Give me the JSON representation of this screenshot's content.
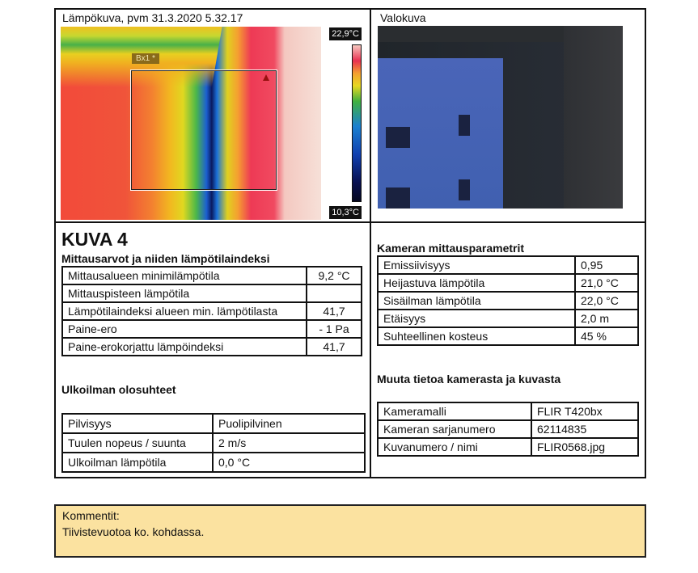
{
  "thermal": {
    "title": "Lämpökuva, pvm  31.3.2020 5.32.17",
    "max_temp": "22,9°C",
    "min_temp": "10,3°C",
    "box_label": "Bx1 *"
  },
  "photo": {
    "title": "Valokuva"
  },
  "kuva": "KUVA 4",
  "measurements": {
    "heading": "Mittausarvot ja niiden lämpötilaindeksi",
    "rows": [
      {
        "label": "Mittausalueen minimilämpötila",
        "value": "9,2 °C"
      },
      {
        "label": "Mittauspisteen lämpötila",
        "value": ""
      },
      {
        "label": "Lämpötilaindeksi alueen min. lämpötilasta",
        "value": "41,7"
      },
      {
        "label": "Paine-ero",
        "value": "- 1 Pa"
      },
      {
        "label": "Paine-erokorjattu lämpöindeksi",
        "value": "41,7"
      }
    ]
  },
  "outdoor": {
    "heading": "Ulkoilman olosuhteet",
    "rows": [
      {
        "label": "Pilvisyys",
        "value": "Puolipilvinen"
      },
      {
        "label": "Tuulen nopeus / suunta",
        "value": "2 m/s"
      },
      {
        "label": "Ulkoilman lämpötila",
        "value": "0,0 °C"
      }
    ]
  },
  "camera_params": {
    "heading": "Kameran mittausparametrit",
    "rows": [
      {
        "label": "Emissiivisyys",
        "value": "0,95"
      },
      {
        "label": "Heijastuva lämpötila",
        "value": "21,0 °C"
      },
      {
        "label": "Sisäilman lämpötila",
        "value": "22,0 °C"
      },
      {
        "label": "Etäisyys",
        "value": "2,0 m"
      },
      {
        "label": "Suhteellinen kosteus",
        "value": "45 %"
      }
    ]
  },
  "camera_info": {
    "heading": "Muuta tietoa kamerasta ja kuvasta",
    "rows": [
      {
        "label": "Kameramalli",
        "value": "FLIR T420bx"
      },
      {
        "label": "Kameran sarjanumero",
        "value": "62114835"
      },
      {
        "label": "Kuvanumero / nimi",
        "value": "FLIR0568.jpg"
      }
    ]
  },
  "comment": {
    "label": "Kommentit:",
    "text": "Tiivistevuotoa ko. kohdassa."
  },
  "colors": {
    "comment_bg": "#fbe2a0"
  }
}
